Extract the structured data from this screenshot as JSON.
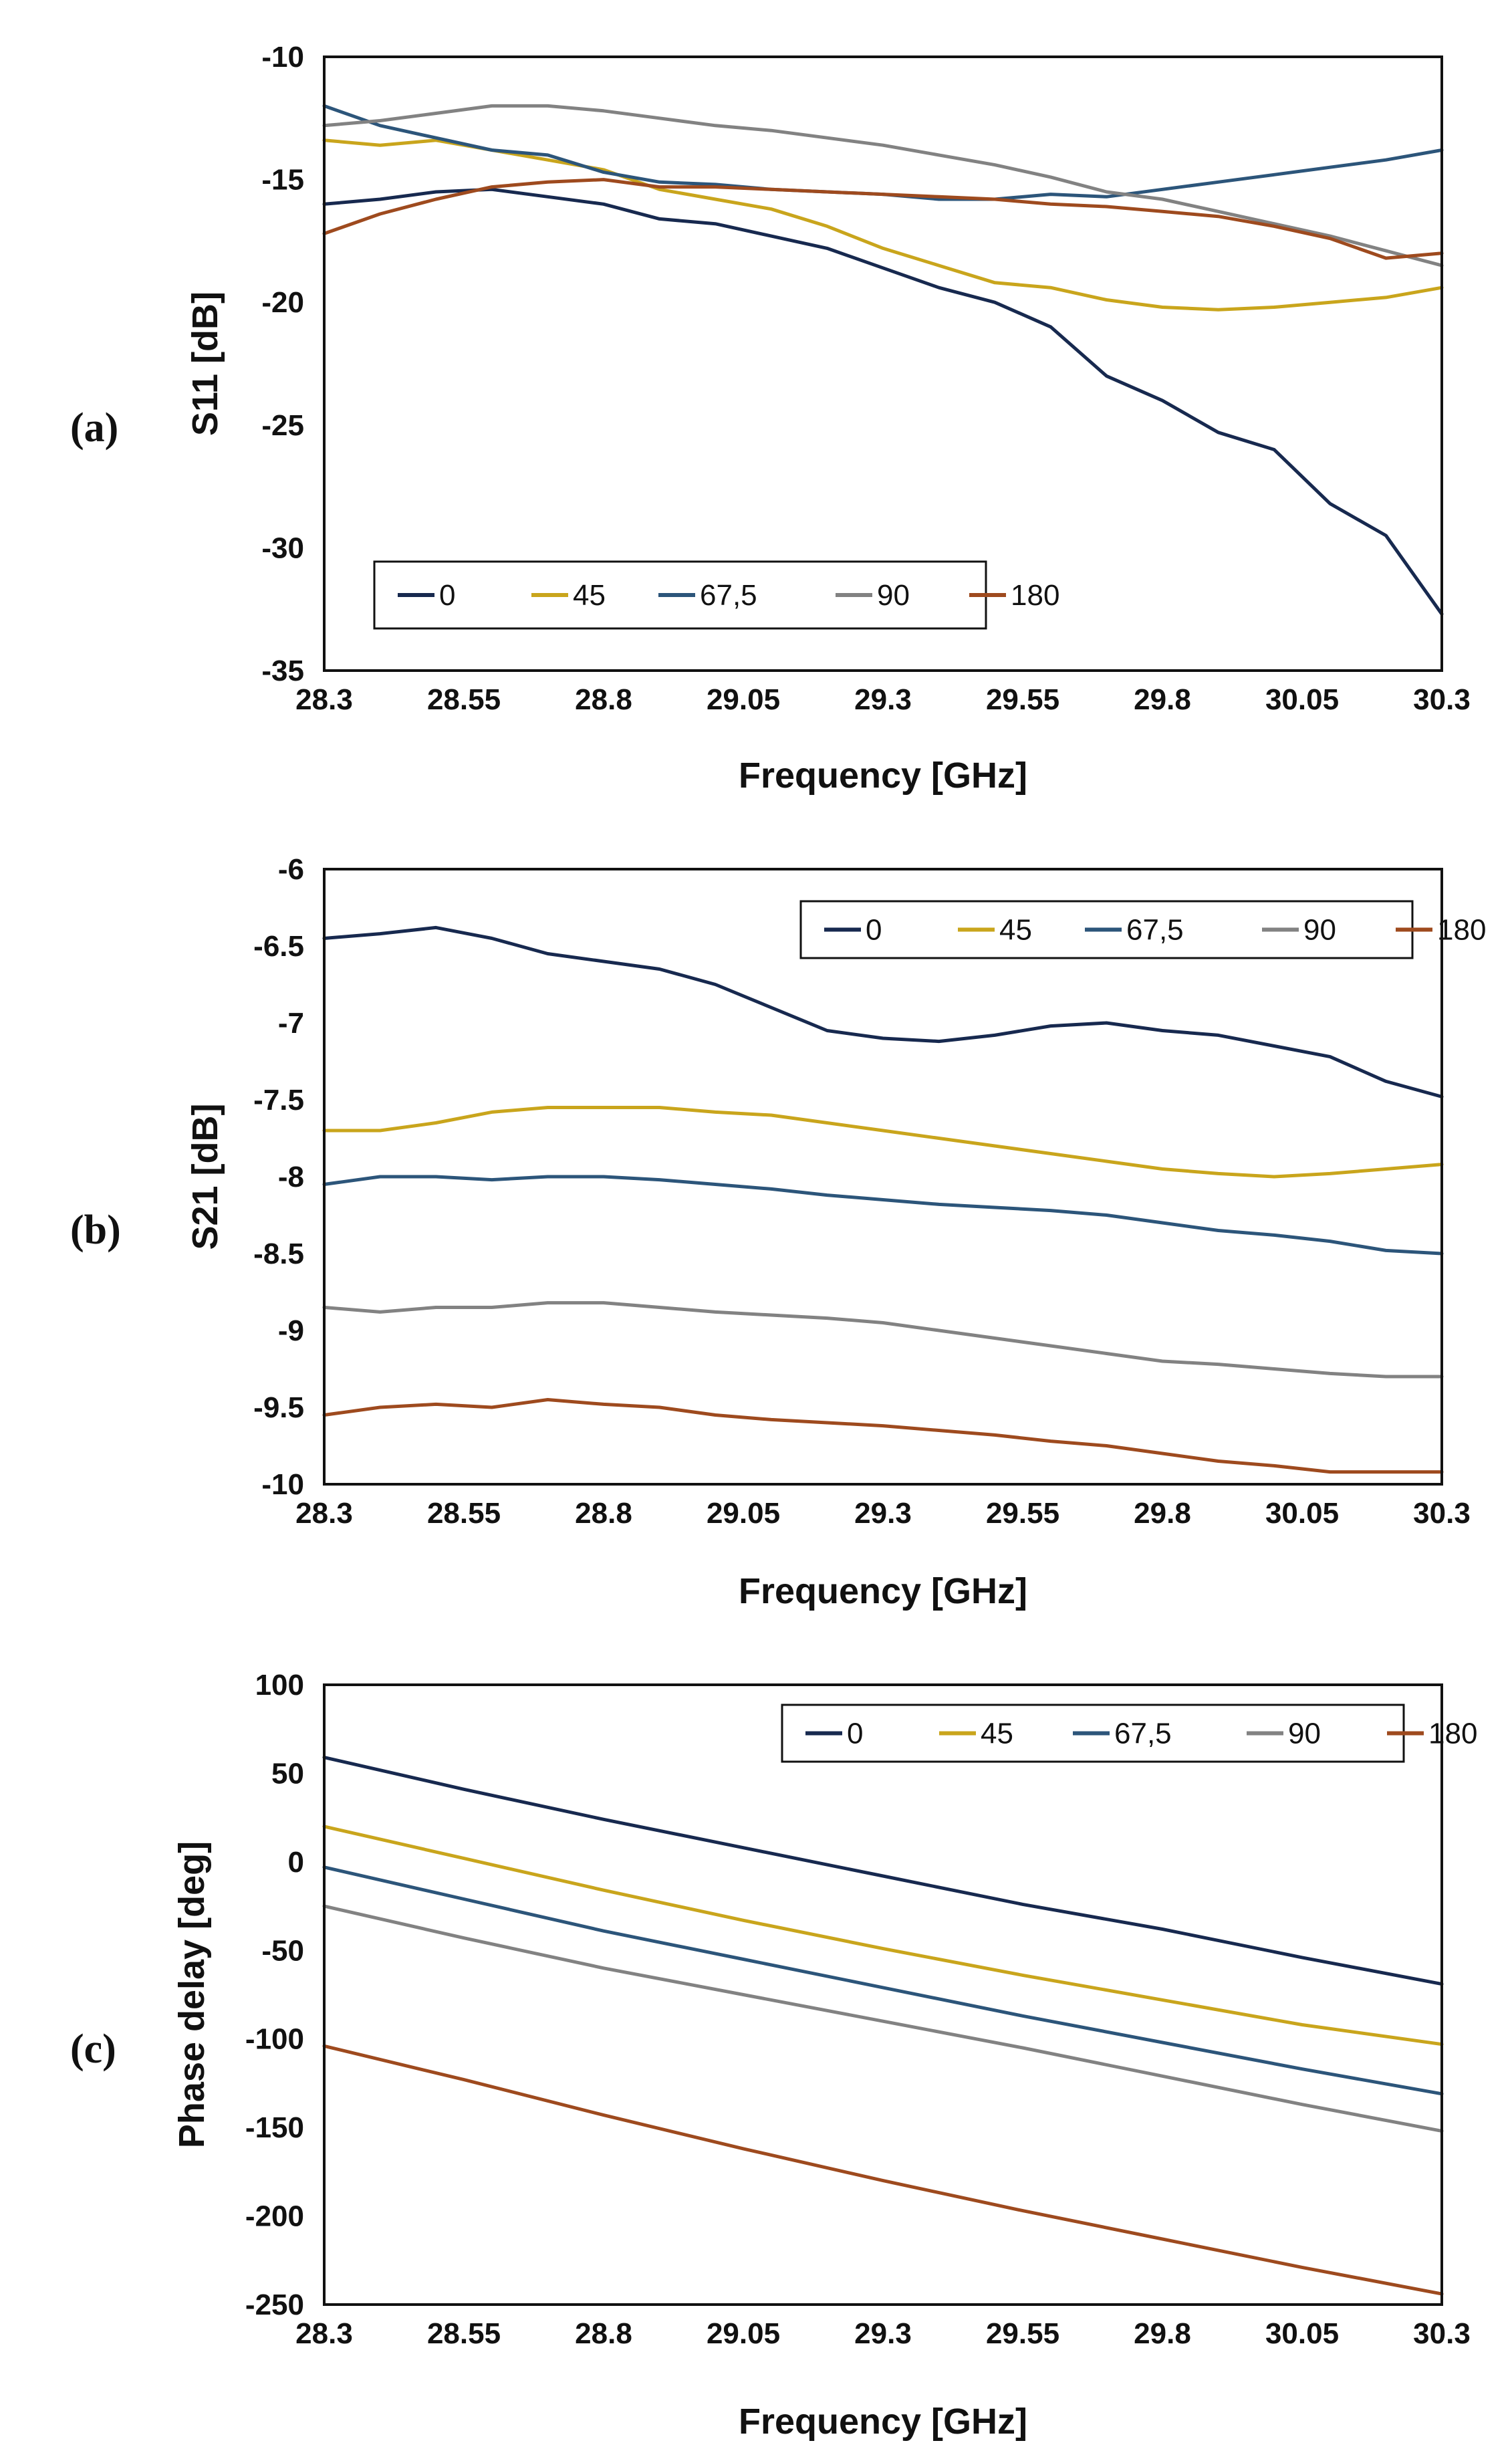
{
  "colors": {
    "s0": "#17294f",
    "s45": "#c9a51c",
    "s67_5": "#2c557a",
    "s90": "#828282",
    "s180": "#9e4a1e",
    "axis": "#111111"
  },
  "chart_data": [
    {
      "type": "line",
      "panel_label": "(a)",
      "xlabel": "Frequency [GHz]",
      "ylabel": "S11 [dB]",
      "xlim": [
        28.3,
        30.3
      ],
      "ylim": [
        -35,
        -10
      ],
      "xticks": [
        "28.3",
        "28.55",
        "28.8",
        "29.05",
        "29.3",
        "29.55",
        "29.8",
        "30.05",
        "30.3"
      ],
      "yticks": [
        "-10",
        "-15",
        "-20",
        "-25",
        "-30",
        "-35"
      ],
      "legend_position": "bottom-left",
      "x": [
        28.3,
        28.4,
        28.5,
        28.6,
        28.7,
        28.8,
        28.9,
        29.0,
        29.1,
        29.2,
        29.3,
        29.4,
        29.5,
        29.6,
        29.7,
        29.8,
        29.9,
        30.0,
        30.1,
        30.2,
        30.3
      ],
      "series": [
        {
          "name": "0",
          "color_key": "s0",
          "values": [
            -16.0,
            -15.8,
            -15.5,
            -15.4,
            -15.7,
            -16.0,
            -16.6,
            -16.8,
            -17.3,
            -17.8,
            -18.6,
            -19.4,
            -20.0,
            -21.0,
            -23.0,
            -24.0,
            -25.3,
            -26.0,
            -28.2,
            -29.5,
            -32.7
          ]
        },
        {
          "name": "45",
          "color_key": "s45",
          "values": [
            -13.4,
            -13.6,
            -13.4,
            -13.8,
            -14.2,
            -14.6,
            -15.4,
            -15.8,
            -16.2,
            -16.9,
            -17.8,
            -18.5,
            -19.2,
            -19.4,
            -19.9,
            -20.2,
            -20.3,
            -20.2,
            -20.0,
            -19.8,
            -19.4
          ]
        },
        {
          "name": "67,5",
          "color_key": "s67_5",
          "values": [
            -12.0,
            -12.8,
            -13.3,
            -13.8,
            -14.0,
            -14.7,
            -15.1,
            -15.2,
            -15.4,
            -15.5,
            -15.6,
            -15.8,
            -15.8,
            -15.6,
            -15.7,
            -15.4,
            -15.1,
            -14.8,
            -14.5,
            -14.2,
            -13.8
          ]
        },
        {
          "name": "90",
          "color_key": "s90",
          "values": [
            -12.8,
            -12.6,
            -12.3,
            -12.0,
            -12.0,
            -12.2,
            -12.5,
            -12.8,
            -13.0,
            -13.3,
            -13.6,
            -14.0,
            -14.4,
            -14.9,
            -15.5,
            -15.8,
            -16.3,
            -16.8,
            -17.3,
            -17.9,
            -18.5
          ]
        },
        {
          "name": "180",
          "color_key": "s180",
          "values": [
            -17.2,
            -16.4,
            -15.8,
            -15.3,
            -15.1,
            -15.0,
            -15.3,
            -15.3,
            -15.4,
            -15.5,
            -15.6,
            -15.7,
            -15.8,
            -16.0,
            -16.1,
            -16.3,
            -16.5,
            -16.9,
            -17.4,
            -18.2,
            -18.0
          ]
        }
      ]
    },
    {
      "type": "line",
      "panel_label": "(b)",
      "xlabel": "Frequency [GHz]",
      "ylabel": "S21 [dB]",
      "xlim": [
        28.3,
        30.3
      ],
      "ylim": [
        -10,
        -6
      ],
      "xticks": [
        "28.3",
        "28.55",
        "28.8",
        "29.05",
        "29.3",
        "29.55",
        "29.8",
        "30.05",
        "30.3"
      ],
      "yticks": [
        "-6",
        "-6.5",
        "-7",
        "-7.5",
        "-8",
        "-8.5",
        "-9",
        "-9.5",
        "-10"
      ],
      "legend_position": "top-right",
      "x": [
        28.3,
        28.4,
        28.5,
        28.6,
        28.7,
        28.8,
        28.9,
        29.0,
        29.1,
        29.2,
        29.3,
        29.4,
        29.5,
        29.6,
        29.7,
        29.8,
        29.9,
        30.0,
        30.1,
        30.2,
        30.3
      ],
      "series": [
        {
          "name": "0",
          "color_key": "s0",
          "values": [
            -6.45,
            -6.42,
            -6.38,
            -6.45,
            -6.55,
            -6.6,
            -6.65,
            -6.75,
            -6.9,
            -7.05,
            -7.1,
            -7.12,
            -7.08,
            -7.02,
            -7.0,
            -7.05,
            -7.08,
            -7.15,
            -7.22,
            -7.38,
            -7.48
          ]
        },
        {
          "name": "45",
          "color_key": "s45",
          "values": [
            -7.7,
            -7.7,
            -7.65,
            -7.58,
            -7.55,
            -7.55,
            -7.55,
            -7.58,
            -7.6,
            -7.65,
            -7.7,
            -7.75,
            -7.8,
            -7.85,
            -7.9,
            -7.95,
            -7.98,
            -8.0,
            -7.98,
            -7.95,
            -7.92
          ]
        },
        {
          "name": "67,5",
          "color_key": "s67_5",
          "values": [
            -8.05,
            -8.0,
            -8.0,
            -8.02,
            -8.0,
            -8.0,
            -8.02,
            -8.05,
            -8.08,
            -8.12,
            -8.15,
            -8.18,
            -8.2,
            -8.22,
            -8.25,
            -8.3,
            -8.35,
            -8.38,
            -8.42,
            -8.48,
            -8.5
          ]
        },
        {
          "name": "90",
          "color_key": "s90",
          "values": [
            -8.85,
            -8.88,
            -8.85,
            -8.85,
            -8.82,
            -8.82,
            -8.85,
            -8.88,
            -8.9,
            -8.92,
            -8.95,
            -9.0,
            -9.05,
            -9.1,
            -9.15,
            -9.2,
            -9.22,
            -9.25,
            -9.28,
            -9.3,
            -9.3
          ]
        },
        {
          "name": "180",
          "color_key": "s180",
          "values": [
            -9.55,
            -9.5,
            -9.48,
            -9.5,
            -9.45,
            -9.48,
            -9.5,
            -9.55,
            -9.58,
            -9.6,
            -9.62,
            -9.65,
            -9.68,
            -9.72,
            -9.75,
            -9.8,
            -9.85,
            -9.88,
            -9.92,
            -9.92,
            -9.92
          ]
        }
      ]
    },
    {
      "type": "line",
      "panel_label": "(c)",
      "xlabel": "Frequency [GHz]",
      "ylabel": "Phase delay [deg]",
      "xlim": [
        28.3,
        30.3
      ],
      "ylim": [
        -250,
        100
      ],
      "xticks": [
        "28.3",
        "28.55",
        "28.8",
        "29.05",
        "29.3",
        "29.55",
        "29.8",
        "30.05",
        "30.3"
      ],
      "yticks": [
        "100",
        "50",
        "0",
        "-50",
        "-100",
        "-150",
        "-200",
        "-250"
      ],
      "legend_position": "top-right",
      "x": [
        28.3,
        28.55,
        28.8,
        29.05,
        29.3,
        29.55,
        29.8,
        30.05,
        30.3
      ],
      "series": [
        {
          "name": "0",
          "color_key": "s0",
          "values": [
            59,
            41,
            24,
            8,
            -8,
            -24,
            -38,
            -54,
            -69
          ]
        },
        {
          "name": "45",
          "color_key": "s45",
          "values": [
            20,
            2,
            -16,
            -33,
            -49,
            -64,
            -78,
            -92,
            -103
          ]
        },
        {
          "name": "67,5",
          "color_key": "s67_5",
          "values": [
            -3,
            -21,
            -39,
            -55,
            -71,
            -87,
            -102,
            -117,
            -131
          ]
        },
        {
          "name": "90",
          "color_key": "s90",
          "values": [
            -25,
            -43,
            -60,
            -75,
            -90,
            -105,
            -121,
            -137,
            -152
          ]
        },
        {
          "name": "180",
          "color_key": "s180",
          "values": [
            -104,
            -123,
            -143,
            -162,
            -180,
            -197,
            -213,
            -229,
            -244
          ]
        }
      ]
    }
  ]
}
